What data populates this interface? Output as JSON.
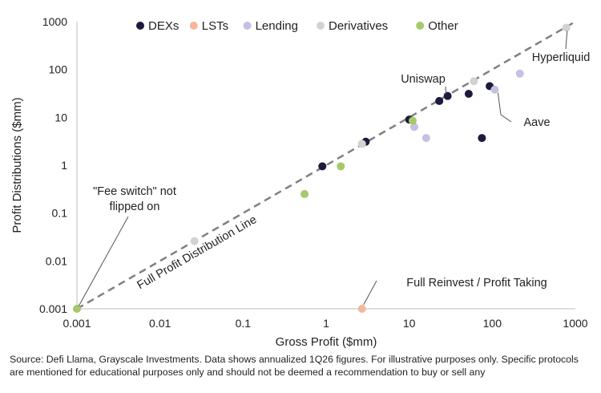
{
  "chart_data": {
    "type": "scatter",
    "xlabel": "Gross Profit ($mm)",
    "ylabel": "Profit Distributions ($mm)",
    "xscale": "log",
    "yscale": "log",
    "xlim": [
      0.001,
      1000
    ],
    "ylim": [
      0.001,
      1000
    ],
    "xticks": [
      "0.001",
      "0.01",
      "0.1",
      "1",
      "10",
      "100",
      "1000"
    ],
    "yticks": [
      "0.001",
      "0.01",
      "0.1",
      "1",
      "10",
      "100",
      "1000"
    ],
    "grid": false,
    "legend_position": "top",
    "series": [
      {
        "name": "DEXs",
        "color": "#1c1b3d",
        "points": [
          {
            "x": 0.9,
            "y": 0.95
          },
          {
            "x": 3.0,
            "y": 3.1
          },
          {
            "x": 10.0,
            "y": 9.0
          },
          {
            "x": 23,
            "y": 22
          },
          {
            "x": 29,
            "y": 28
          },
          {
            "x": 52,
            "y": 31
          },
          {
            "x": 93,
            "y": 45
          },
          {
            "x": 75,
            "y": 3.7
          }
        ]
      },
      {
        "name": "LSTs",
        "color": "#f5b79a",
        "points": [
          {
            "x": 2.7,
            "y": 0.001
          }
        ]
      },
      {
        "name": "Lending",
        "color": "#c3c1e3",
        "points": [
          {
            "x": 11.5,
            "y": 6.3
          },
          {
            "x": 16,
            "y": 3.7
          },
          {
            "x": 107,
            "y": 38
          },
          {
            "x": 215,
            "y": 82
          }
        ]
      },
      {
        "name": "Derivatives",
        "color": "#d2d2d2",
        "points": [
          {
            "x": 0.026,
            "y": 0.026
          },
          {
            "x": 2.7,
            "y": 2.8
          },
          {
            "x": 60,
            "y": 57
          },
          {
            "x": 780,
            "y": 750
          }
        ]
      },
      {
        "name": "Other",
        "color": "#a6c96a",
        "points": [
          {
            "x": 0.001,
            "y": 0.001
          },
          {
            "x": 0.55,
            "y": 0.25
          },
          {
            "x": 1.5,
            "y": 0.95
          },
          {
            "x": 11,
            "y": 8.5
          }
        ]
      }
    ],
    "reference_line": {
      "label": "Full Profit Distribution Line",
      "style": "dashed",
      "color": "#808080"
    },
    "annotations": [
      {
        "text": "Uniswap",
        "x": 29,
        "y": 28
      },
      {
        "text": "Hyperliquid",
        "x": 780,
        "y": 750
      },
      {
        "text": "Aave",
        "x": 107,
        "y": 38
      },
      {
        "text": "\"Fee switch\" not\nflipped on",
        "x": 0.001,
        "y": 0.001
      },
      {
        "text": "Full Reinvest / Profit Taking",
        "x": 2.7,
        "y": 0.001
      }
    ]
  },
  "footer": {
    "source": "Source: Defi Llama, Grayscale Investments. Data shows annualized 1Q26 figures. For illustrative purposes only. Specific protocols are mentioned for educational purposes only and should not be deemed a recommendation to buy or sell any"
  }
}
